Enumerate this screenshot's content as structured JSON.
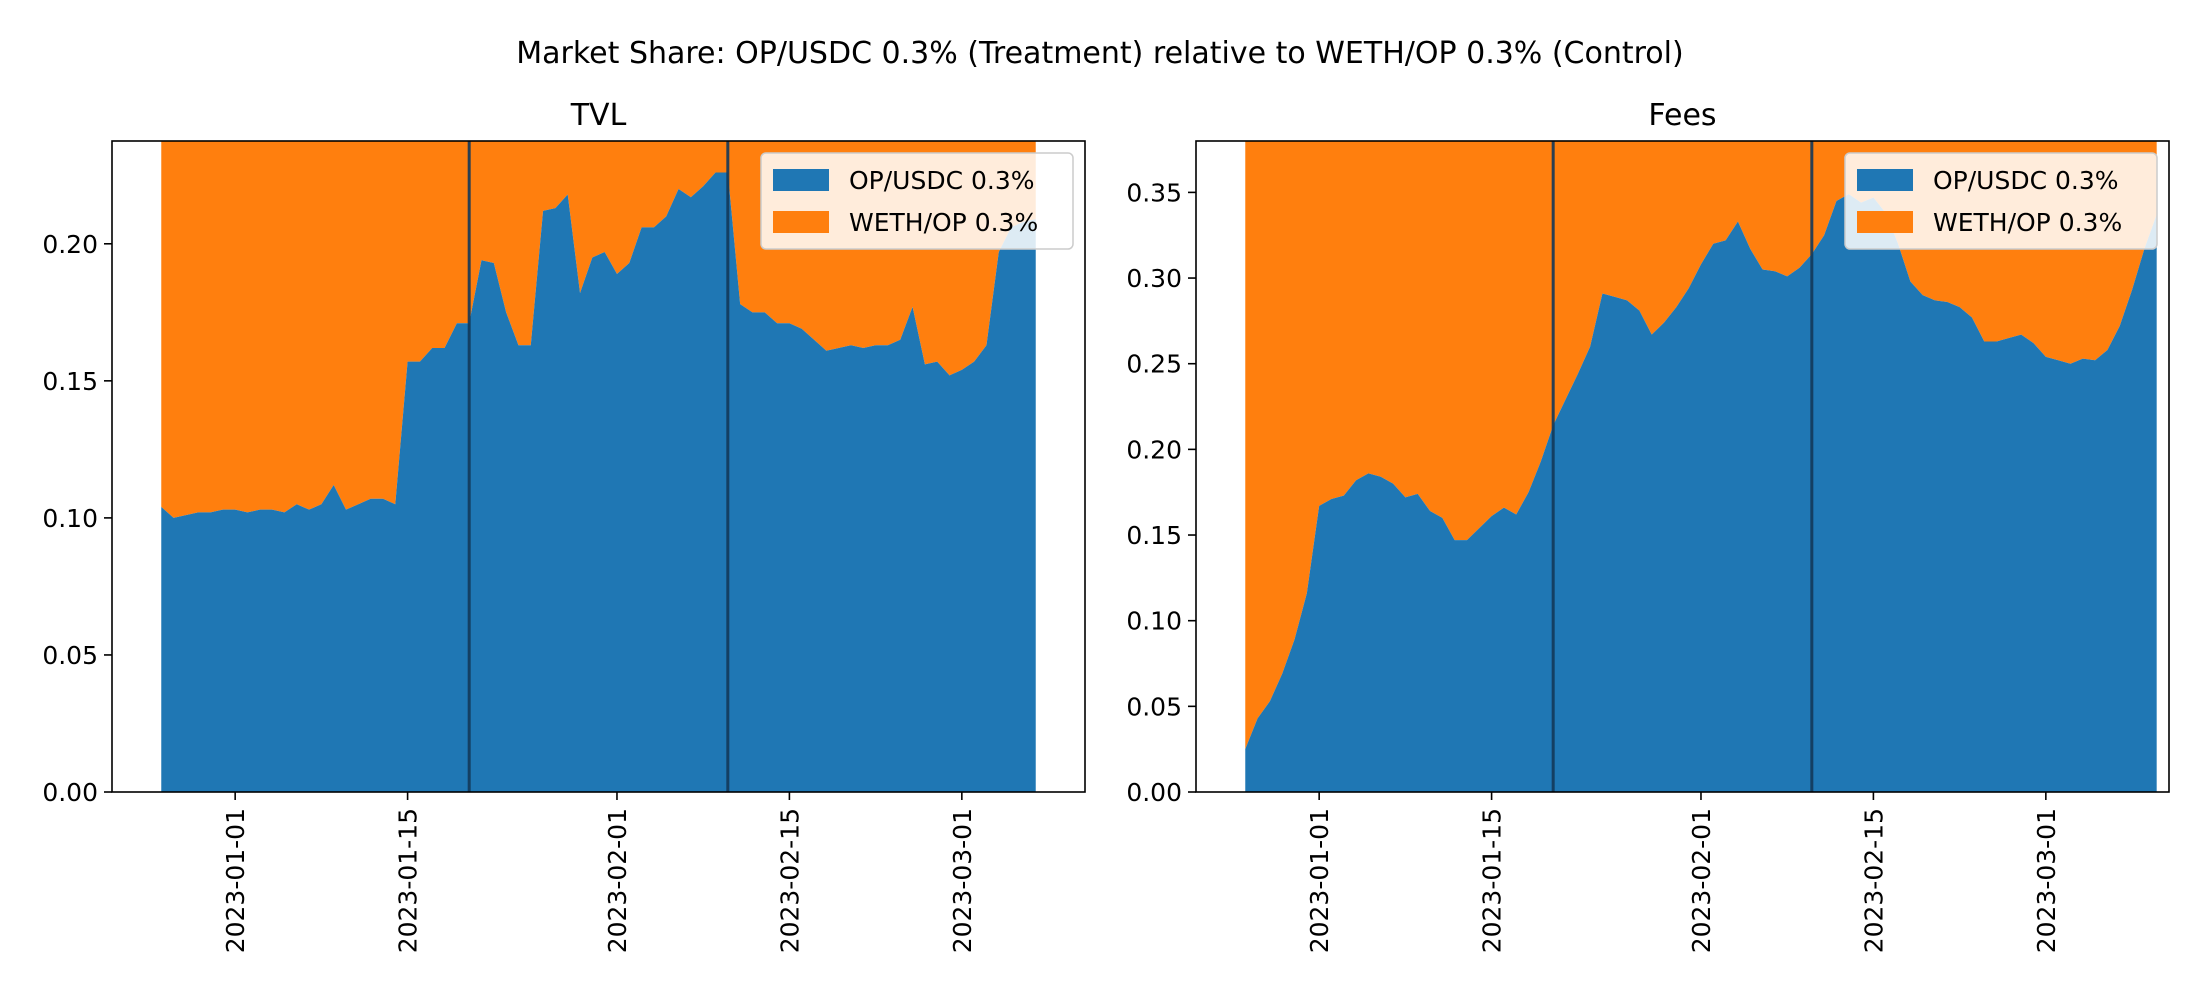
{
  "figure": {
    "title": "Market Share: OP/USDC 0.3% (Treatment) relative to WETH/OP 0.3% (Control)"
  },
  "colors": {
    "treatment": "#1f77b4",
    "control": "#ff7f0e",
    "vline": "#13395a"
  },
  "chart_data": [
    {
      "type": "area",
      "stacked": true,
      "title": "TVL",
      "xlabel": "",
      "ylabel": "",
      "xlim": [
        "2022-12-22",
        "2023-03-11"
      ],
      "ylim": [
        0,
        0.2375
      ],
      "xticks": [
        "2023-01-01",
        "2023-01-15",
        "2023-02-01",
        "2023-02-15",
        "2023-03-01"
      ],
      "yticks": [
        "0.00",
        "0.05",
        "0.10",
        "0.15",
        "0.20"
      ],
      "vlines": [
        "2023-01-20",
        "2023-02-10"
      ],
      "legend": {
        "position": "upper right",
        "entries": [
          "OP/USDC 0.3%",
          "WETH/OP 0.3%"
        ]
      },
      "series": [
        {
          "name": "OP/USDC 0.3%",
          "color": "#1f77b4",
          "points": [
            [
              "2022-12-26",
              0.104
            ],
            [
              "2022-12-27",
              0.1
            ],
            [
              "2022-12-28",
              0.101
            ],
            [
              "2022-12-29",
              0.102
            ],
            [
              "2022-12-30",
              0.102
            ],
            [
              "2022-12-31",
              0.103
            ],
            [
              "2023-01-01",
              0.103
            ],
            [
              "2023-01-02",
              0.102
            ],
            [
              "2023-01-03",
              0.103
            ],
            [
              "2023-01-04",
              0.103
            ],
            [
              "2023-01-05",
              0.102
            ],
            [
              "2023-01-06",
              0.105
            ],
            [
              "2023-01-07",
              0.103
            ],
            [
              "2023-01-08",
              0.105
            ],
            [
              "2023-01-09",
              0.112
            ],
            [
              "2023-01-10",
              0.103
            ],
            [
              "2023-01-11",
              0.105
            ],
            [
              "2023-01-12",
              0.107
            ],
            [
              "2023-01-13",
              0.107
            ],
            [
              "2023-01-14",
              0.105
            ],
            [
              "2023-01-15",
              0.157
            ],
            [
              "2023-01-16",
              0.157
            ],
            [
              "2023-01-17",
              0.162
            ],
            [
              "2023-01-18",
              0.162
            ],
            [
              "2023-01-19",
              0.171
            ],
            [
              "2023-01-20",
              0.171
            ],
            [
              "2023-01-21",
              0.194
            ],
            [
              "2023-01-22",
              0.193
            ],
            [
              "2023-01-23",
              0.175
            ],
            [
              "2023-01-24",
              0.163
            ],
            [
              "2023-01-25",
              0.163
            ],
            [
              "2023-01-26",
              0.212
            ],
            [
              "2023-01-27",
              0.213
            ],
            [
              "2023-01-28",
              0.218
            ],
            [
              "2023-01-29",
              0.182
            ],
            [
              "2023-01-30",
              0.195
            ],
            [
              "2023-01-31",
              0.197
            ],
            [
              "2023-02-01",
              0.189
            ],
            [
              "2023-02-02",
              0.193
            ],
            [
              "2023-02-03",
              0.206
            ],
            [
              "2023-02-04",
              0.206
            ],
            [
              "2023-02-05",
              0.21
            ],
            [
              "2023-02-06",
              0.22
            ],
            [
              "2023-02-07",
              0.217
            ],
            [
              "2023-02-08",
              0.221
            ],
            [
              "2023-02-09",
              0.226
            ],
            [
              "2023-02-10",
              0.226
            ],
            [
              "2023-02-11",
              0.178
            ],
            [
              "2023-02-12",
              0.175
            ],
            [
              "2023-02-13",
              0.175
            ],
            [
              "2023-02-14",
              0.171
            ],
            [
              "2023-02-15",
              0.171
            ],
            [
              "2023-02-16",
              0.169
            ],
            [
              "2023-02-17",
              0.165
            ],
            [
              "2023-02-18",
              0.161
            ],
            [
              "2023-02-19",
              0.162
            ],
            [
              "2023-02-20",
              0.163
            ],
            [
              "2023-02-21",
              0.162
            ],
            [
              "2023-02-22",
              0.163
            ],
            [
              "2023-02-23",
              0.163
            ],
            [
              "2023-02-24",
              0.165
            ],
            [
              "2023-02-25",
              0.177
            ],
            [
              "2023-02-26",
              0.156
            ],
            [
              "2023-02-27",
              0.157
            ],
            [
              "2023-02-28",
              0.152
            ],
            [
              "2023-03-01",
              0.154
            ],
            [
              "2023-03-02",
              0.157
            ],
            [
              "2023-03-03",
              0.163
            ],
            [
              "2023-03-04",
              0.197
            ],
            [
              "2023-03-05",
              0.206
            ],
            [
              "2023-03-06",
              0.208
            ],
            [
              "2023-03-07",
              0.209
            ]
          ]
        },
        {
          "name": "WETH/OP 0.3%",
          "color": "#ff7f0e",
          "fill_to_top": true
        }
      ]
    },
    {
      "type": "area",
      "stacked": true,
      "title": "Fees",
      "xlabel": "",
      "ylabel": "",
      "xlim": [
        "2022-12-22",
        "2023-03-11"
      ],
      "ylim": [
        0,
        0.38
      ],
      "xticks": [
        "2023-01-01",
        "2023-01-15",
        "2023-02-01",
        "2023-02-15",
        "2023-03-01"
      ],
      "yticks": [
        "0.00",
        "0.05",
        "0.10",
        "0.15",
        "0.20",
        "0.25",
        "0.30",
        "0.35"
      ],
      "vlines": [
        "2023-01-20",
        "2023-02-10"
      ],
      "legend": {
        "position": "upper right",
        "entries": [
          "OP/USDC 0.3%",
          "WETH/OP 0.3%"
        ]
      },
      "series": [
        {
          "name": "OP/USDC 0.3%",
          "color": "#1f77b4",
          "points": [
            [
              "2022-12-26",
              0.025
            ],
            [
              "2022-12-27",
              0.043
            ],
            [
              "2022-12-28",
              0.053
            ],
            [
              "2022-12-29",
              0.069
            ],
            [
              "2022-12-30",
              0.089
            ],
            [
              "2022-12-31",
              0.116
            ],
            [
              "2023-01-01",
              0.167
            ],
            [
              "2023-01-02",
              0.171
            ],
            [
              "2023-01-03",
              0.173
            ],
            [
              "2023-01-04",
              0.182
            ],
            [
              "2023-01-05",
              0.186
            ],
            [
              "2023-01-06",
              0.184
            ],
            [
              "2023-01-07",
              0.18
            ],
            [
              "2023-01-08",
              0.172
            ],
            [
              "2023-01-09",
              0.174
            ],
            [
              "2023-01-10",
              0.164
            ],
            [
              "2023-01-11",
              0.16
            ],
            [
              "2023-01-12",
              0.147
            ],
            [
              "2023-01-13",
              0.147
            ],
            [
              "2023-01-14",
              0.154
            ],
            [
              "2023-01-15",
              0.161
            ],
            [
              "2023-01-16",
              0.166
            ],
            [
              "2023-01-17",
              0.162
            ],
            [
              "2023-01-18",
              0.175
            ],
            [
              "2023-01-19",
              0.193
            ],
            [
              "2023-01-20",
              0.214
            ],
            [
              "2023-01-21",
              0.229
            ],
            [
              "2023-01-22",
              0.244
            ],
            [
              "2023-01-23",
              0.26
            ],
            [
              "2023-01-24",
              0.291
            ],
            [
              "2023-01-25",
              0.289
            ],
            [
              "2023-01-26",
              0.287
            ],
            [
              "2023-01-27",
              0.281
            ],
            [
              "2023-01-28",
              0.267
            ],
            [
              "2023-01-29",
              0.274
            ],
            [
              "2023-01-30",
              0.283
            ],
            [
              "2023-01-31",
              0.294
            ],
            [
              "2023-02-01",
              0.308
            ],
            [
              "2023-02-02",
              0.32
            ],
            [
              "2023-02-03",
              0.322
            ],
            [
              "2023-02-04",
              0.333
            ],
            [
              "2023-02-05",
              0.317
            ],
            [
              "2023-02-06",
              0.305
            ],
            [
              "2023-02-07",
              0.304
            ],
            [
              "2023-02-08",
              0.301
            ],
            [
              "2023-02-09",
              0.306
            ],
            [
              "2023-02-10",
              0.314
            ],
            [
              "2023-02-11",
              0.325
            ],
            [
              "2023-02-12",
              0.345
            ],
            [
              "2023-02-13",
              0.349
            ],
            [
              "2023-02-14",
              0.344
            ],
            [
              "2023-02-15",
              0.347
            ],
            [
              "2023-02-16",
              0.338
            ],
            [
              "2023-02-17",
              0.32
            ],
            [
              "2023-02-18",
              0.298
            ],
            [
              "2023-02-19",
              0.29
            ],
            [
              "2023-02-20",
              0.287
            ],
            [
              "2023-02-21",
              0.286
            ],
            [
              "2023-02-22",
              0.283
            ],
            [
              "2023-02-23",
              0.277
            ],
            [
              "2023-02-24",
              0.263
            ],
            [
              "2023-02-25",
              0.263
            ],
            [
              "2023-02-26",
              0.265
            ],
            [
              "2023-02-27",
              0.267
            ],
            [
              "2023-02-28",
              0.262
            ],
            [
              "2023-03-01",
              0.254
            ],
            [
              "2023-03-02",
              0.252
            ],
            [
              "2023-03-03",
              0.25
            ],
            [
              "2023-03-04",
              0.253
            ],
            [
              "2023-03-05",
              0.252
            ],
            [
              "2023-03-06",
              0.258
            ],
            [
              "2023-03-07",
              0.272
            ],
            [
              "2023-03-08",
              0.293
            ],
            [
              "2023-03-09",
              0.317
            ],
            [
              "2023-03-10",
              0.337
            ]
          ]
        },
        {
          "name": "WETH/OP 0.3%",
          "color": "#ff7f0e",
          "fill_to_top": true
        }
      ]
    }
  ]
}
